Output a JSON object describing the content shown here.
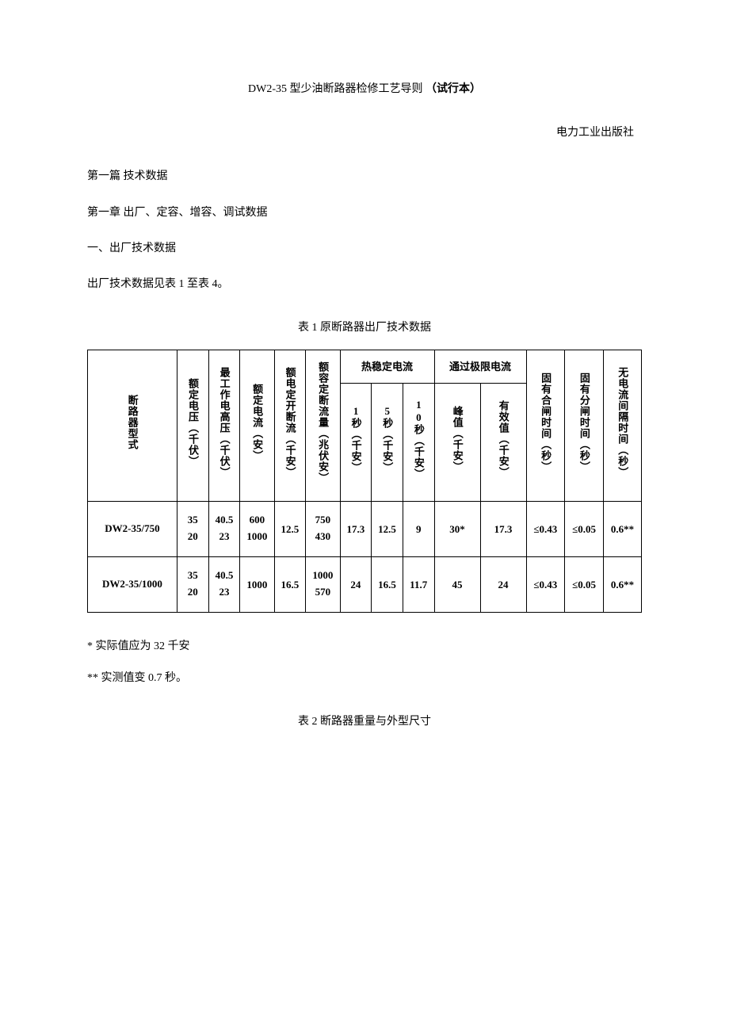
{
  "document": {
    "title_prefix": "DW2-35 型少油断路器检修工艺导则",
    "title_suffix": "（试行本）",
    "publisher": "电力工业出版社",
    "part_heading": "第一篇 技术数据",
    "chapter_heading": "第一章 出厂、定容、增容、调试数据",
    "section1_heading": "一、出厂技术数据",
    "section1_text": "出厂技术数据见表 1 至表 4。",
    "table1_caption": "表 1 原断路器出厂技术数据",
    "table2_caption": "表 2 断路器重量与外型尺寸",
    "footnote1": "* 实际值应为 32 千安",
    "footnote2": "** 实测值变 0.7 秒。"
  },
  "table1": {
    "headers": {
      "col1": "断路器型式",
      "col2": "额定电压（千伏）",
      "col3": "最工作电高压（千伏）",
      "col4": "额定电流（安）",
      "col5": "额电定开断流（千安）",
      "col6": "额容定断流量（兆伏安）",
      "thermal_group": "热稳定电流",
      "col7": "1秒（千安）",
      "col8": "5秒（千安）",
      "col9": "10秒（千安）",
      "limit_group": "通过极限电流",
      "col10": "峰值（千安）",
      "col11": "有效值（千安）",
      "col12": "固有合闸时间（秒）",
      "col13": "固有分闸时间（秒）",
      "col14": "无电流间隔时间（秒）"
    },
    "rows": [
      {
        "model": "DW2-35/750",
        "voltage": "35\n20",
        "max_voltage": "40.5\n23",
        "current": "600\n1000",
        "break_current": "12.5",
        "break_capacity": "750\n430",
        "thermal_1s": "17.3",
        "thermal_5s": "12.5",
        "thermal_10s": "9",
        "peak": "30*",
        "rms": "17.3",
        "close_time": "≤0.43",
        "open_time": "≤0.05",
        "interval": "0.6**"
      },
      {
        "model": "DW2-35/1000",
        "voltage": "35\n20",
        "max_voltage": "40.5\n23",
        "current": "1000",
        "break_current": "16.5",
        "break_capacity": "1000\n570",
        "thermal_1s": "24",
        "thermal_5s": "16.5",
        "thermal_10s": "11.7",
        "peak": "45",
        "rms": "24",
        "close_time": "≤0.43",
        "open_time": "≤0.05",
        "interval": "0.6**"
      }
    ]
  }
}
